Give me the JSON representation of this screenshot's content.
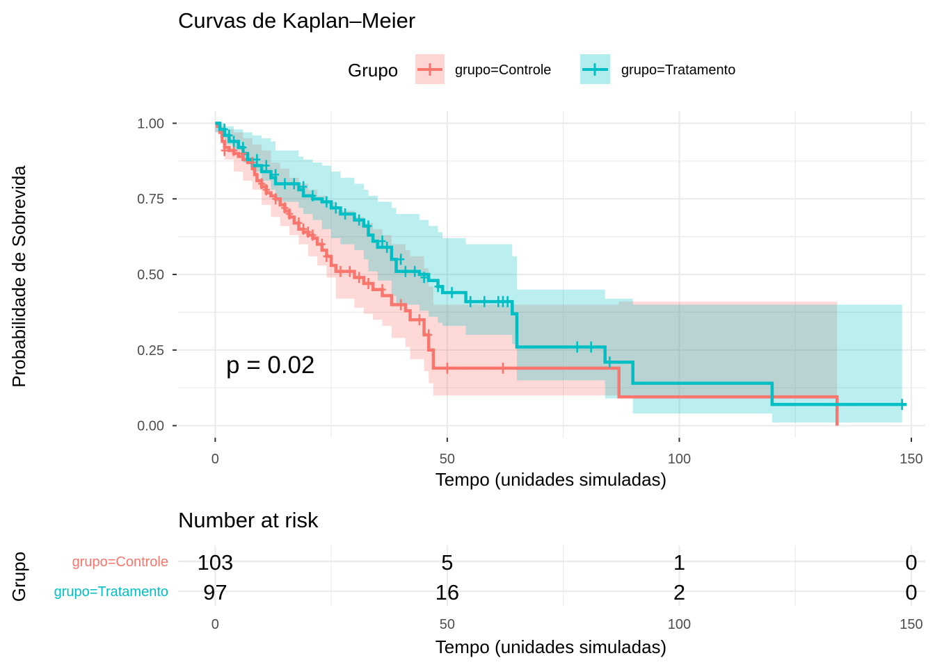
{
  "colors": {
    "controle": "#F8766D",
    "tratamento": "#00BFC4",
    "grid": "#EBEBEB",
    "text": "#000000",
    "tick_text": "#4D4D4D"
  },
  "chart_data": [
    {
      "type": "line",
      "subtype": "kaplan-meier-step",
      "title": "Curvas de Kaplan–Meier",
      "xlabel": "Tempo (unidades simuladas)",
      "ylabel": "Probabilidade de Sobrevida",
      "xlim": [
        -8,
        153
      ],
      "ylim": [
        -0.04,
        1.04
      ],
      "xticks": [
        0,
        50,
        100,
        150
      ],
      "xtick_labels": [
        "0",
        "50",
        "100",
        "150"
      ],
      "yticks": [
        0,
        0.25,
        0.5,
        0.75,
        1
      ],
      "ytick_labels": [
        "0.00",
        "0.25",
        "0.50",
        "0.75",
        "1.00"
      ],
      "grid": true,
      "legend": {
        "title": "Grupo",
        "position": "top",
        "entries": [
          "grupo=Controle",
          "grupo=Tratamento"
        ]
      },
      "annotation": "p = 0.02",
      "series": [
        {
          "name": "grupo=Controle",
          "color_key": "controle",
          "steps": [
            [
              0,
              1.0
            ],
            [
              0.5,
              0.99
            ],
            [
              1,
              0.97
            ],
            [
              1.5,
              0.94
            ],
            [
              2,
              0.92
            ],
            [
              3,
              0.91
            ],
            [
              4,
              0.9
            ],
            [
              5,
              0.89
            ],
            [
              6,
              0.88
            ],
            [
              7,
              0.87
            ],
            [
              8,
              0.85
            ],
            [
              8.5,
              0.83
            ],
            [
              9,
              0.81
            ],
            [
              10,
              0.79
            ],
            [
              11,
              0.77
            ],
            [
              12,
              0.76
            ],
            [
              13,
              0.75
            ],
            [
              14,
              0.73
            ],
            [
              15,
              0.71
            ],
            [
              16,
              0.69
            ],
            [
              17,
              0.67
            ],
            [
              18,
              0.65
            ],
            [
              19,
              0.64
            ],
            [
              20,
              0.63
            ],
            [
              21,
              0.62
            ],
            [
              22,
              0.6
            ],
            [
              23,
              0.58
            ],
            [
              24,
              0.56
            ],
            [
              25,
              0.53
            ],
            [
              26,
              0.51
            ],
            [
              30,
              0.49
            ],
            [
              32,
              0.47
            ],
            [
              34,
              0.45
            ],
            [
              36,
              0.43
            ],
            [
              38,
              0.4
            ],
            [
              41,
              0.38
            ],
            [
              42,
              0.35
            ],
            [
              45,
              0.3
            ],
            [
              46,
              0.25
            ],
            [
              47,
              0.19
            ],
            [
              87,
              0.095
            ],
            [
              134,
              0.0
            ]
          ],
          "end_x": 134,
          "ci_upper": [
            [
              0,
              1.0
            ],
            [
              1,
              0.99
            ],
            [
              2,
              0.98
            ],
            [
              4,
              0.97
            ],
            [
              6,
              0.95
            ],
            [
              8,
              0.93
            ],
            [
              10,
              0.91
            ],
            [
              12,
              0.87
            ],
            [
              14,
              0.85
            ],
            [
              16,
              0.82
            ],
            [
              18,
              0.8
            ],
            [
              20,
              0.78
            ],
            [
              22,
              0.76
            ],
            [
              24,
              0.74
            ],
            [
              26,
              0.71
            ],
            [
              30,
              0.69
            ],
            [
              32,
              0.67
            ],
            [
              34,
              0.65
            ],
            [
              36,
              0.63
            ],
            [
              38,
              0.6
            ],
            [
              41,
              0.58
            ],
            [
              42,
              0.56
            ],
            [
              45,
              0.52
            ],
            [
              46,
              0.46
            ],
            [
              47,
              0.4
            ],
            [
              87,
              0.41
            ],
            [
              134,
              0.41
            ]
          ],
          "ci_lower": [
            [
              0,
              0.97
            ],
            [
              1,
              0.95
            ],
            [
              2,
              0.88
            ],
            [
              4,
              0.84
            ],
            [
              6,
              0.81
            ],
            [
              8,
              0.78
            ],
            [
              10,
              0.73
            ],
            [
              12,
              0.69
            ],
            [
              14,
              0.66
            ],
            [
              16,
              0.63
            ],
            [
              18,
              0.6
            ],
            [
              20,
              0.56
            ],
            [
              22,
              0.53
            ],
            [
              24,
              0.49
            ],
            [
              26,
              0.42
            ],
            [
              30,
              0.39
            ],
            [
              32,
              0.37
            ],
            [
              34,
              0.35
            ],
            [
              36,
              0.33
            ],
            [
              38,
              0.29
            ],
            [
              41,
              0.26
            ],
            [
              42,
              0.22
            ],
            [
              45,
              0.18
            ],
            [
              46,
              0.14
            ],
            [
              47,
              0.1
            ],
            [
              87,
              0.095
            ],
            [
              134,
              0.0
            ]
          ],
          "censors": [
            [
              2,
              0.91
            ],
            [
              4,
              0.91
            ],
            [
              6,
              0.9
            ],
            [
              8,
              0.87
            ],
            [
              10,
              0.8
            ],
            [
              11,
              0.78
            ],
            [
              13,
              0.75
            ],
            [
              15,
              0.72
            ],
            [
              16,
              0.7
            ],
            [
              18,
              0.67
            ],
            [
              19,
              0.65
            ],
            [
              20,
              0.64
            ],
            [
              21,
              0.63
            ],
            [
              23,
              0.6
            ],
            [
              24,
              0.56
            ],
            [
              27,
              0.51
            ],
            [
              29,
              0.51
            ],
            [
              31,
              0.49
            ],
            [
              33,
              0.47
            ],
            [
              36,
              0.45
            ],
            [
              40,
              0.4
            ],
            [
              44,
              0.35
            ],
            [
              46,
              0.3
            ],
            [
              50,
              0.19
            ],
            [
              62,
              0.19
            ]
          ]
        },
        {
          "name": "grupo=Tratamento",
          "color_key": "tratamento",
          "steps": [
            [
              0,
              1.0
            ],
            [
              1,
              0.98
            ],
            [
              2,
              0.96
            ],
            [
              3,
              0.94
            ],
            [
              5,
              0.92
            ],
            [
              6,
              0.9
            ],
            [
              7,
              0.88
            ],
            [
              8,
              0.86
            ],
            [
              10,
              0.84
            ],
            [
              12,
              0.82
            ],
            [
              13,
              0.8
            ],
            [
              18,
              0.78
            ],
            [
              19,
              0.76
            ],
            [
              21,
              0.75
            ],
            [
              23,
              0.74
            ],
            [
              25,
              0.72
            ],
            [
              27,
              0.7
            ],
            [
              30,
              0.68
            ],
            [
              32,
              0.66
            ],
            [
              33,
              0.63
            ],
            [
              34,
              0.61
            ],
            [
              35,
              0.59
            ],
            [
              38,
              0.55
            ],
            [
              39,
              0.51
            ],
            [
              44,
              0.5
            ],
            [
              46,
              0.48
            ],
            [
              48,
              0.46
            ],
            [
              49,
              0.44
            ],
            [
              54,
              0.41
            ],
            [
              64,
              0.37
            ],
            [
              65,
              0.26
            ],
            [
              84,
              0.21
            ],
            [
              90,
              0.14
            ],
            [
              120,
              0.07
            ]
          ],
          "end_x": 149,
          "ci_upper": [
            [
              0,
              1.0
            ],
            [
              2,
              0.99
            ],
            [
              4,
              0.98
            ],
            [
              6,
              0.97
            ],
            [
              8,
              0.96
            ],
            [
              10,
              0.95
            ],
            [
              12,
              0.94
            ],
            [
              13,
              0.91
            ],
            [
              18,
              0.89
            ],
            [
              19,
              0.88
            ],
            [
              21,
              0.87
            ],
            [
              23,
              0.86
            ],
            [
              25,
              0.84
            ],
            [
              27,
              0.82
            ],
            [
              30,
              0.8
            ],
            [
              32,
              0.78
            ],
            [
              33,
              0.76
            ],
            [
              35,
              0.74
            ],
            [
              38,
              0.72
            ],
            [
              39,
              0.7
            ],
            [
              44,
              0.68
            ],
            [
              46,
              0.66
            ],
            [
              48,
              0.64
            ],
            [
              49,
              0.62
            ],
            [
              54,
              0.6
            ],
            [
              64,
              0.56
            ],
            [
              65,
              0.45
            ],
            [
              84,
              0.42
            ],
            [
              90,
              0.4
            ],
            [
              120,
              0.4
            ],
            [
              148,
              0.4
            ]
          ],
          "ci_lower": [
            [
              0,
              0.97
            ],
            [
              2,
              0.93
            ],
            [
              4,
              0.91
            ],
            [
              6,
              0.87
            ],
            [
              8,
              0.84
            ],
            [
              10,
              0.81
            ],
            [
              12,
              0.78
            ],
            [
              13,
              0.74
            ],
            [
              18,
              0.72
            ],
            [
              19,
              0.7
            ],
            [
              21,
              0.68
            ],
            [
              23,
              0.65
            ],
            [
              25,
              0.62
            ],
            [
              27,
              0.6
            ],
            [
              30,
              0.58
            ],
            [
              32,
              0.55
            ],
            [
              33,
              0.51
            ],
            [
              35,
              0.48
            ],
            [
              38,
              0.43
            ],
            [
              39,
              0.4
            ],
            [
              44,
              0.38
            ],
            [
              46,
              0.36
            ],
            [
              48,
              0.34
            ],
            [
              49,
              0.33
            ],
            [
              54,
              0.3
            ],
            [
              64,
              0.27
            ],
            [
              65,
              0.15
            ],
            [
              84,
              0.09
            ],
            [
              90,
              0.04
            ],
            [
              120,
              0.01
            ],
            [
              148,
              0.01
            ]
          ],
          "censors": [
            [
              2,
              0.98
            ],
            [
              3,
              0.96
            ],
            [
              4,
              0.94
            ],
            [
              6,
              0.92
            ],
            [
              9,
              0.88
            ],
            [
              11,
              0.86
            ],
            [
              13,
              0.83
            ],
            [
              15,
              0.8
            ],
            [
              17,
              0.8
            ],
            [
              19,
              0.79
            ],
            [
              21,
              0.76
            ],
            [
              24,
              0.74
            ],
            [
              26,
              0.72
            ],
            [
              28,
              0.7
            ],
            [
              31,
              0.68
            ],
            [
              33,
              0.66
            ],
            [
              36,
              0.61
            ],
            [
              37,
              0.59
            ],
            [
              40,
              0.55
            ],
            [
              41,
              0.51
            ],
            [
              43,
              0.51
            ],
            [
              45,
              0.49
            ],
            [
              48,
              0.46
            ],
            [
              51,
              0.44
            ],
            [
              55,
              0.41
            ],
            [
              58,
              0.41
            ],
            [
              61,
              0.41
            ],
            [
              62,
              0.41
            ],
            [
              63,
              0.41
            ],
            [
              78,
              0.26
            ],
            [
              81,
              0.26
            ],
            [
              85,
              0.21
            ],
            [
              148,
              0.07
            ]
          ]
        }
      ]
    },
    {
      "type": "table",
      "title": "Number at risk",
      "xlabel": "Tempo (unidades simuladas)",
      "ylabel": "Grupo",
      "xticks": [
        0,
        50,
        100,
        150
      ],
      "xtick_labels": [
        "0",
        "50",
        "100",
        "150"
      ],
      "rows": [
        {
          "name": "grupo=Controle",
          "color_key": "controle",
          "values": [
            "103",
            "5",
            "1",
            "0"
          ]
        },
        {
          "name": "grupo=Tratamento",
          "color_key": "tratamento",
          "values": [
            "97",
            "16",
            "2",
            "0"
          ]
        }
      ]
    }
  ]
}
